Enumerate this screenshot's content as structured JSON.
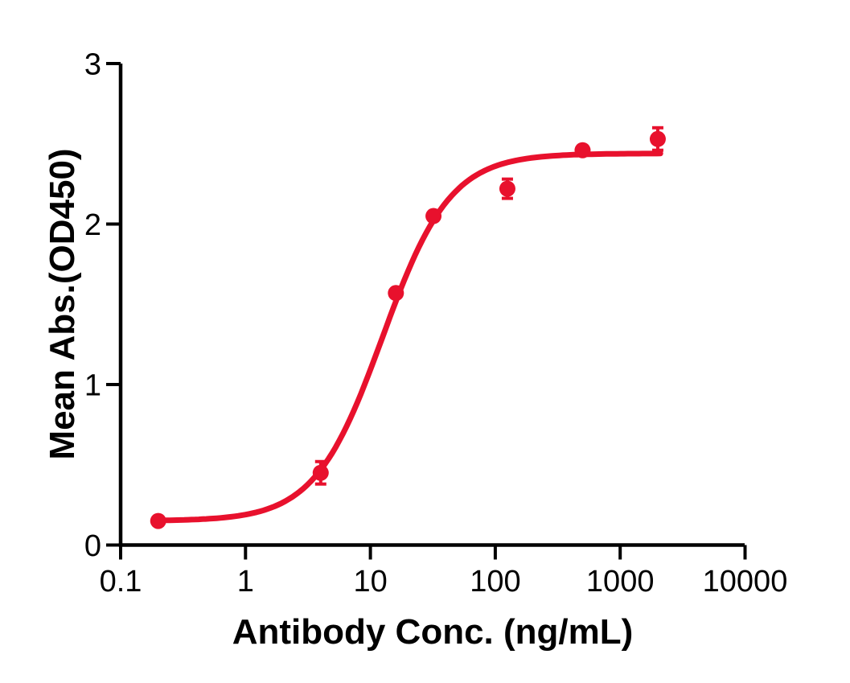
{
  "chart_data": {
    "type": "scatter",
    "title": "",
    "xlabel": "Antibody Conc. (ng/mL)",
    "ylabel": "Mean Abs.(OD450)",
    "x_scale": "log10",
    "xlim": [
      0.1,
      10000
    ],
    "ylim": [
      0,
      3
    ],
    "grid": false,
    "legend": "none",
    "x_ticks": [
      0.1,
      1,
      10,
      100,
      1000,
      10000
    ],
    "x_tick_labels": [
      "0.1",
      "1",
      "10",
      "100",
      "1000",
      "10000"
    ],
    "y_ticks": [
      0,
      1,
      2,
      3
    ],
    "y_tick_labels": [
      "0",
      "1",
      "2",
      "3"
    ],
    "colors": {
      "series": "#e8112d",
      "axis": "#000000",
      "text": "#000000",
      "background": "#ffffff"
    },
    "series": [
      {
        "name": "Mean Abs.(OD450)",
        "marker": "circle",
        "points": [
          {
            "x": 0.2,
            "y": 0.15,
            "err": 0.02
          },
          {
            "x": 4,
            "y": 0.45,
            "err": 0.07
          },
          {
            "x": 16,
            "y": 1.57,
            "err": 0.02
          },
          {
            "x": 32,
            "y": 2.05,
            "err": 0.02
          },
          {
            "x": 125,
            "y": 2.22,
            "err": 0.06
          },
          {
            "x": 500,
            "y": 2.46,
            "err": 0.02
          },
          {
            "x": 2000,
            "y": 2.53,
            "err": 0.07
          }
        ]
      }
    ],
    "fit_curve": {
      "model": "4PL",
      "bottom": 0.15,
      "top": 2.44,
      "ec50": 12.5,
      "hill": 1.6,
      "x_start": 0.19,
      "x_end": 2100
    }
  }
}
